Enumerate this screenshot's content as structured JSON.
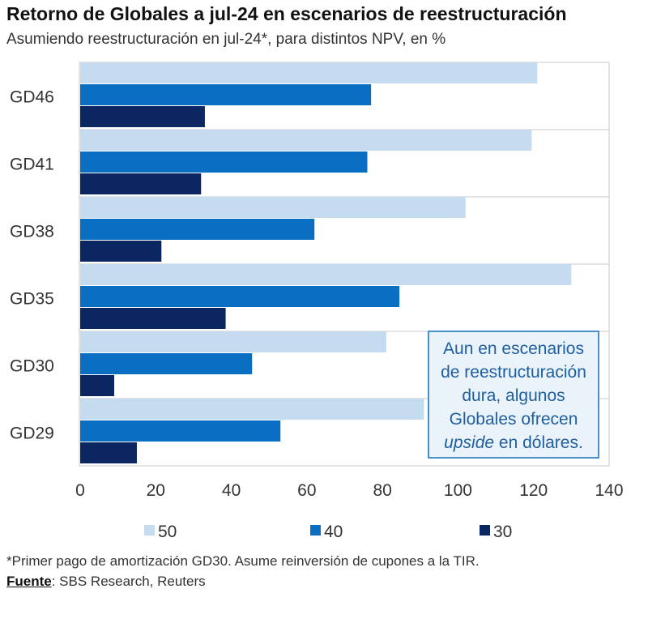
{
  "title": "Retorno de Globales a jul-24 en escenarios de reestructuración",
  "subtitle": "Asumiendo reestructuración en jul-24*, para distintos NPV, en %",
  "chart_data": {
    "type": "bar",
    "orientation": "horizontal",
    "categories": [
      "GD46",
      "GD41",
      "GD38",
      "GD35",
      "GD30",
      "GD29"
    ],
    "series": [
      {
        "name": "50",
        "color": "#c5dbef",
        "values": [
          121,
          119.5,
          102,
          130,
          81,
          91
        ]
      },
      {
        "name": "40",
        "color": "#0a6fc2",
        "values": [
          77,
          76,
          62,
          84.5,
          45.5,
          53
        ]
      },
      {
        "name": "30",
        "color": "#0b2661",
        "values": [
          33,
          32,
          21.5,
          38.5,
          9,
          15
        ]
      }
    ],
    "xlim": [
      0,
      140
    ],
    "xticks": [
      "0",
      "20",
      "40",
      "60",
      "80",
      "100",
      "120",
      "140"
    ],
    "legend_position": "bottom"
  },
  "annotation": {
    "line1": "Aun en escenarios",
    "line2": "de reestructuración",
    "line3": "dura, algunos",
    "line4": "Globales ofrecen",
    "emphasis": "upside",
    "line5_rest": " en dólares."
  },
  "footnote": "*Primer pago de amortización GD30. Asume reinversión de cupones a la TIR.",
  "source": {
    "label": "Fuente",
    "text": ": SBS Research, Reuters"
  }
}
